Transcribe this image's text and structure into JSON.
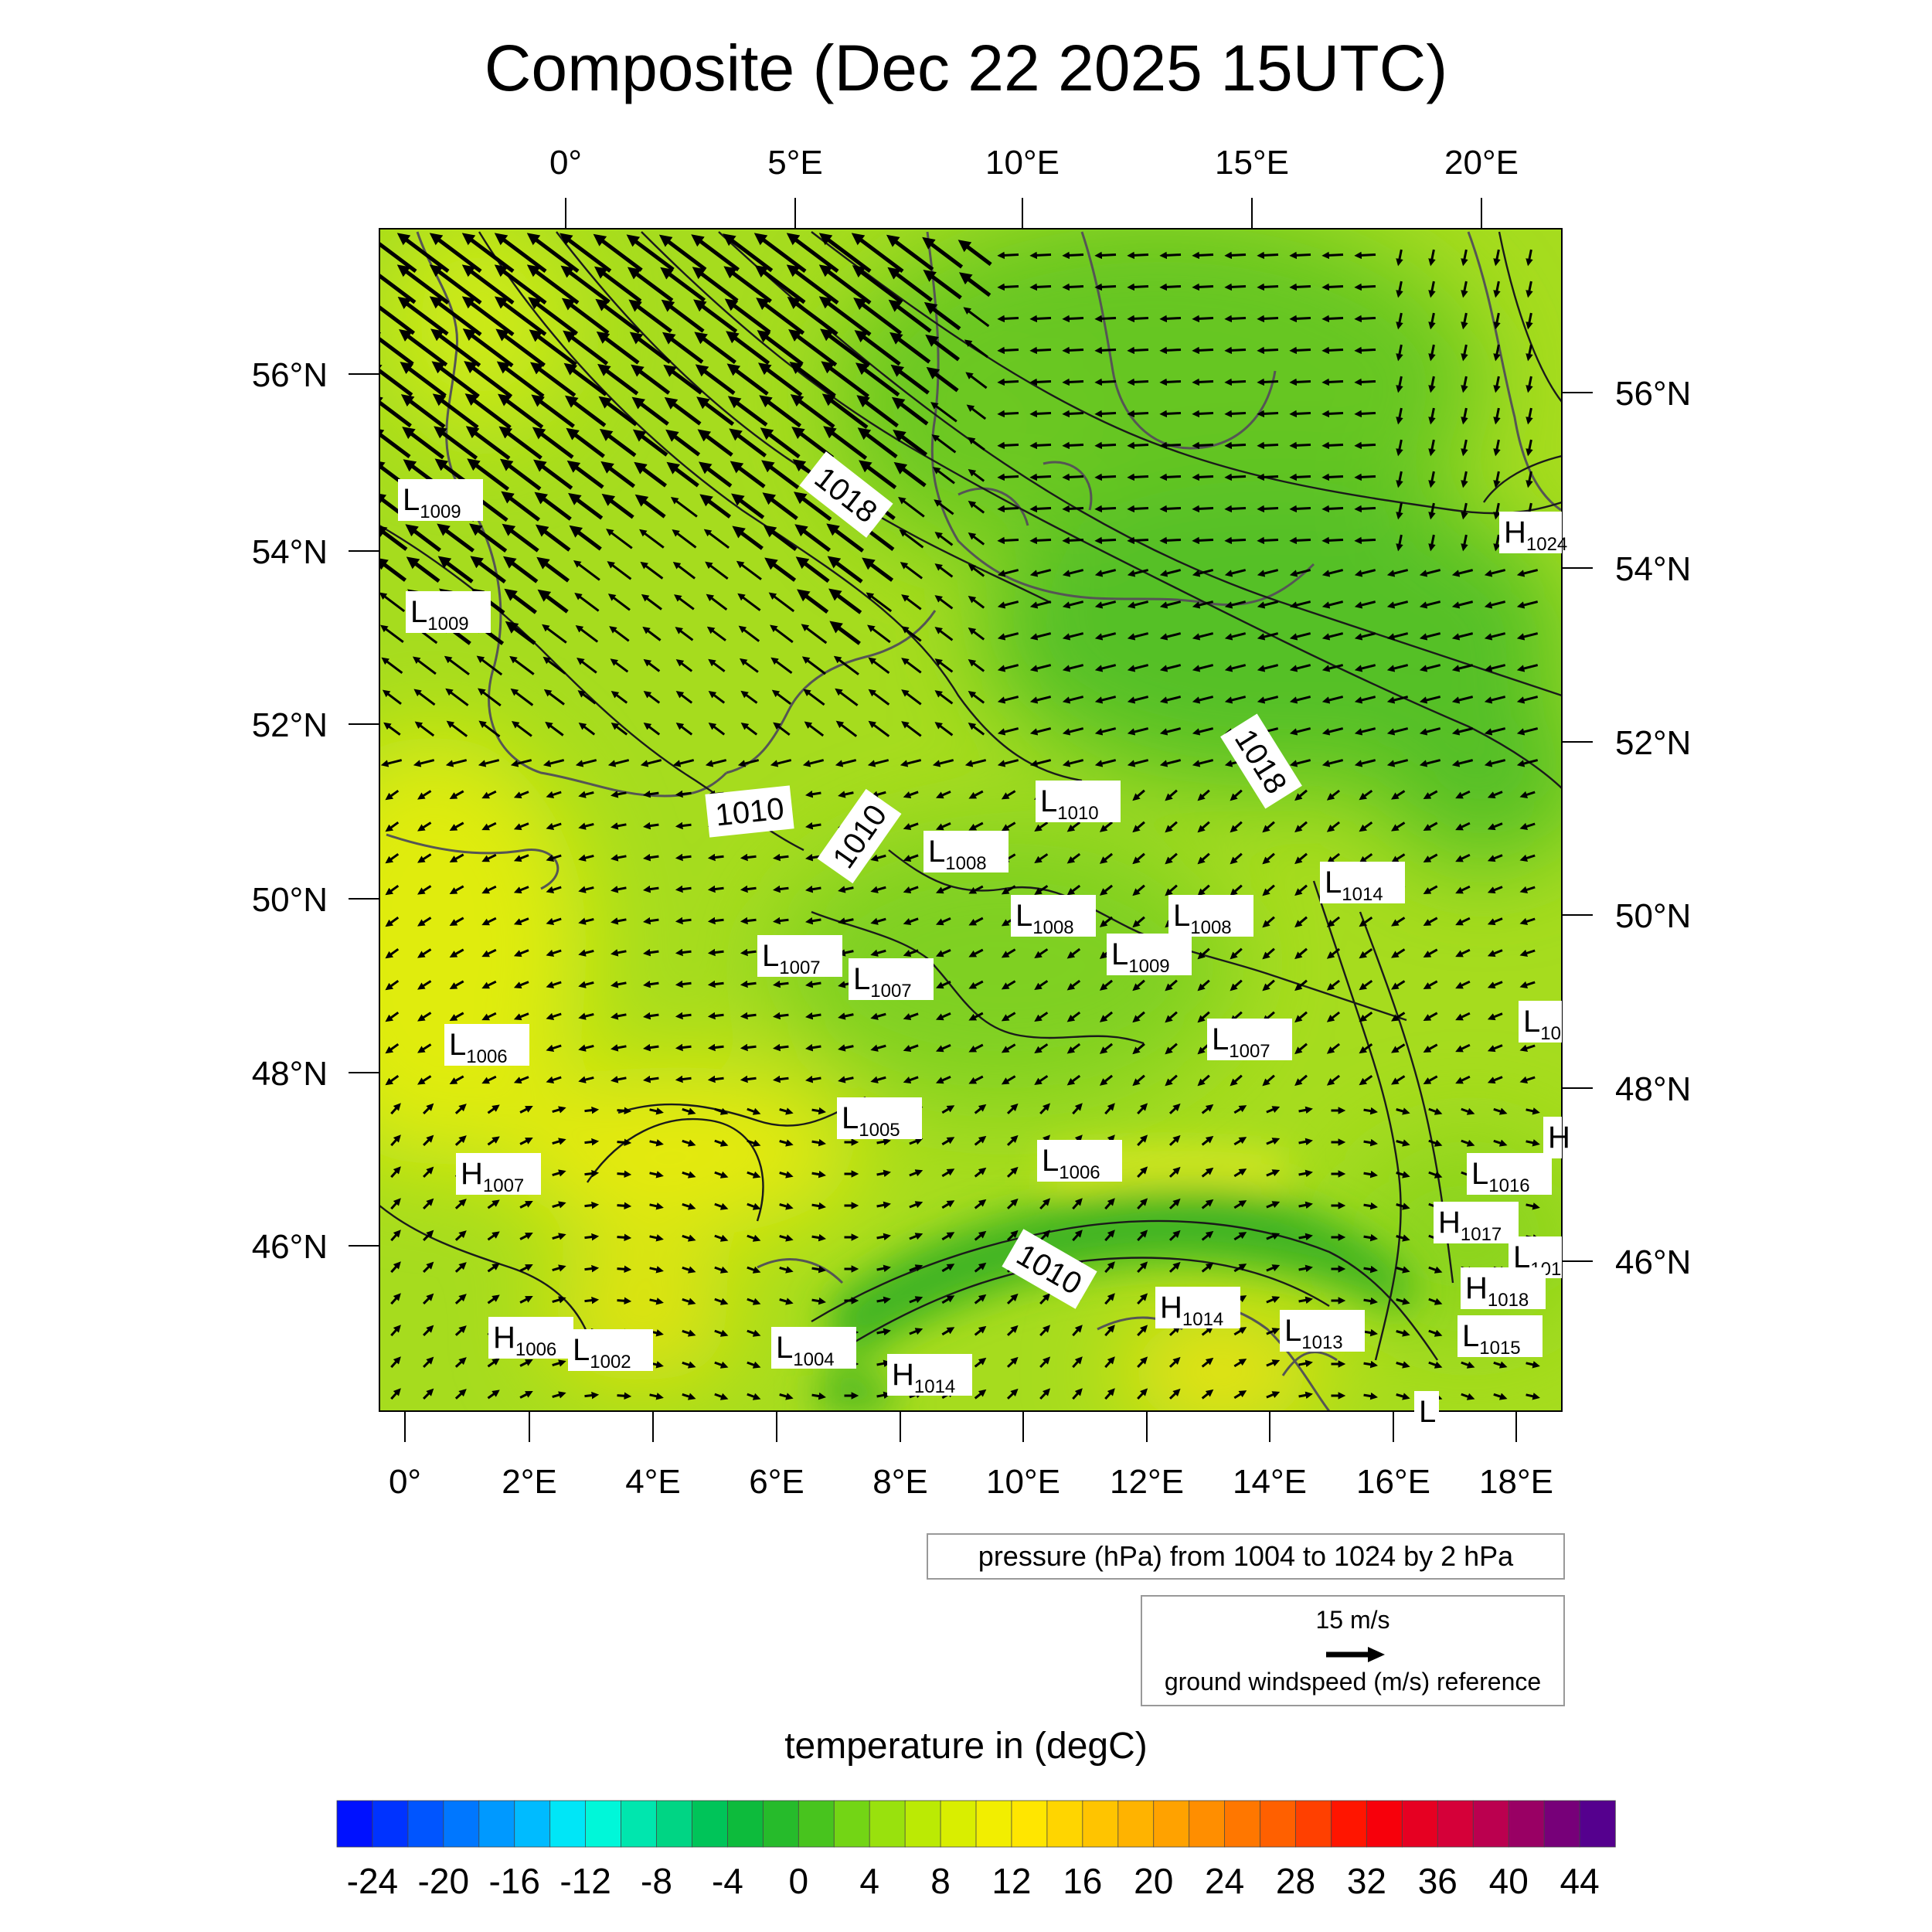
{
  "title": "Composite (Dec 22 2025 15UTC)",
  "top_lon_labels": [
    "0°",
    "5°E",
    "10°E",
    "15°E",
    "20°E"
  ],
  "bottom_lon_labels": [
    "0°",
    "2°E",
    "4°E",
    "6°E",
    "8°E",
    "10°E",
    "12°E",
    "14°E",
    "16°E",
    "18°E"
  ],
  "left_lat_labels": [
    "56°N",
    "54°N",
    "52°N",
    "50°N",
    "48°N",
    "46°N"
  ],
  "right_lat_labels": [
    "56°N",
    "54°N",
    "52°N",
    "50°N",
    "48°N",
    "46°N"
  ],
  "contour_labels": [
    "1018",
    "1010",
    "1010",
    "1018",
    "1010"
  ],
  "pressure_centers": [
    {
      "type": "L",
      "value": "1009"
    },
    {
      "type": "L",
      "value": "1009"
    },
    {
      "type": "H",
      "value": "1024"
    },
    {
      "type": "L",
      "value": "1010"
    },
    {
      "type": "L",
      "value": "1008"
    },
    {
      "type": "L",
      "value": "1008"
    },
    {
      "type": "L",
      "value": "1008"
    },
    {
      "type": "L",
      "value": "1009"
    },
    {
      "type": "L",
      "value": "1014"
    },
    {
      "type": "L",
      "value": "1007"
    },
    {
      "type": "L",
      "value": "1007"
    },
    {
      "type": "L",
      "value": "1007"
    },
    {
      "type": "L",
      "value": "1006"
    },
    {
      "type": "L",
      "value": "10"
    },
    {
      "type": "L",
      "value": "1005"
    },
    {
      "type": "H",
      "value": ""
    },
    {
      "type": "H",
      "value": "1007"
    },
    {
      "type": "L",
      "value": "1006"
    },
    {
      "type": "L",
      "value": "1016"
    },
    {
      "type": "H",
      "value": "1017"
    },
    {
      "type": "L",
      "value": "101"
    },
    {
      "type": "H",
      "value": "1018"
    },
    {
      "type": "H",
      "value": "1014"
    },
    {
      "type": "L",
      "value": "1013"
    },
    {
      "type": "L",
      "value": "1015"
    },
    {
      "type": "H",
      "value": "1006"
    },
    {
      "type": "L",
      "value": "1002"
    },
    {
      "type": "L",
      "value": "1004"
    },
    {
      "type": "H",
      "value": "1014"
    },
    {
      "type": "L",
      "value": ""
    }
  ],
  "pressure_legend": "pressure (hPa) from 1004 to 1024 by 2 hPa",
  "wind_legend": {
    "speed": "15 m/s",
    "description": "ground windspeed (m/s) reference"
  },
  "colorbar": {
    "title": "temperature in (degC)",
    "labels": [
      "-24",
      "-20",
      "-16",
      "-12",
      "-8",
      "-4",
      "0",
      "4",
      "8",
      "12",
      "16",
      "20",
      "24",
      "28",
      "32",
      "36",
      "40",
      "44"
    ],
    "min": -26,
    "max": 46,
    "step": 2,
    "anchors": [
      [
        -26,
        "#0000ff"
      ],
      [
        -20,
        "#0066ff"
      ],
      [
        -14,
        "#00ccff"
      ],
      [
        -12,
        "#00ffee"
      ],
      [
        -8,
        "#00dd99"
      ],
      [
        -4,
        "#00bb44"
      ],
      [
        0,
        "#33bb22"
      ],
      [
        4,
        "#88dd11"
      ],
      [
        8,
        "#ccee00"
      ],
      [
        12,
        "#ffee00"
      ],
      [
        16,
        "#ffcc00"
      ],
      [
        22,
        "#ff9900"
      ],
      [
        28,
        "#ff5500"
      ],
      [
        32,
        "#ff0000"
      ],
      [
        38,
        "#cc0044"
      ],
      [
        46,
        "#440099"
      ]
    ]
  }
}
